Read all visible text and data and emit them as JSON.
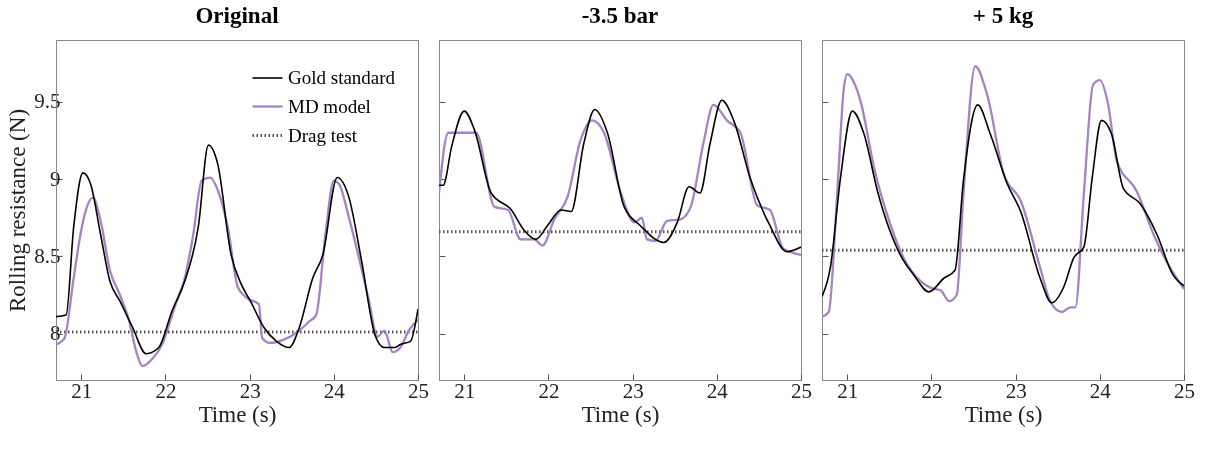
{
  "chart_data": [
    {
      "type": "line",
      "title": "Original",
      "xlabel": "Time (s)",
      "ylabel": "Rolling resistance (N)",
      "xlim": [
        20.7,
        25
      ],
      "ylim": [
        7.7,
        9.9
      ],
      "xticks": [
        21,
        22,
        23,
        24,
        25
      ],
      "yticks": [
        8,
        8.5,
        9,
        9.5
      ],
      "legend": "top right",
      "series": [
        {
          "name": "Gold standard",
          "color": "#000000",
          "line_style": "solid",
          "x": [
            20.7,
            20.82,
            20.91,
            21.02,
            21.11,
            21.23,
            21.34,
            21.46,
            21.61,
            21.77,
            21.92,
            22.08,
            22.23,
            22.39,
            22.51,
            22.62,
            22.78,
            22.9,
            23.01,
            23.17,
            23.32,
            23.47,
            23.59,
            23.75,
            23.87,
            24.04,
            24.18,
            24.33,
            24.49,
            24.6,
            24.72,
            24.79,
            24.91,
            25.0
          ],
          "values": [
            8.11,
            8.12,
            8.69,
            9.04,
            8.97,
            8.64,
            8.34,
            8.21,
            8.04,
            7.87,
            7.91,
            8.15,
            8.34,
            8.69,
            9.22,
            9.1,
            8.51,
            8.32,
            8.21,
            8.04,
            7.95,
            7.91,
            8.04,
            8.36,
            8.51,
            9.01,
            8.88,
            8.47,
            7.99,
            7.91,
            7.91,
            7.93,
            7.95,
            8.16
          ]
        },
        {
          "name": "MD model",
          "color": "#a583c4",
          "line_style": "solid",
          "x": [
            20.7,
            20.8,
            20.91,
            20.99,
            21.05,
            21.14,
            21.23,
            21.34,
            21.46,
            21.57,
            21.65,
            21.73,
            21.85,
            21.96,
            22.12,
            22.23,
            22.33,
            22.43,
            22.53,
            22.64,
            22.74,
            22.86,
            22.97,
            23.11,
            23.15,
            23.24,
            23.4,
            23.59,
            23.71,
            23.79,
            23.9,
            24.0,
            24.06,
            24.18,
            24.29,
            24.41,
            24.52,
            24.6,
            24.7,
            24.79,
            24.89,
            25.0
          ],
          "values": [
            7.93,
            7.97,
            8.36,
            8.64,
            8.79,
            8.88,
            8.73,
            8.41,
            8.25,
            8.08,
            7.89,
            7.79,
            7.84,
            7.93,
            8.19,
            8.36,
            8.64,
            8.99,
            9.01,
            8.9,
            8.69,
            8.3,
            8.23,
            8.19,
            7.97,
            7.94,
            7.96,
            8.02,
            8.08,
            8.12,
            8.64,
            8.99,
            8.97,
            8.75,
            8.51,
            8.23,
            7.98,
            8.02,
            7.88,
            7.91,
            8.02,
            8.09
          ]
        },
        {
          "name": "Drag test",
          "color": "#555555",
          "line_style": "dotted",
          "x": [
            20.7,
            25
          ],
          "values": [
            8.01,
            8.01
          ]
        }
      ]
    },
    {
      "type": "line",
      "title": "-3.5 bar",
      "xlabel": "Time (s)",
      "xlim": [
        20.7,
        25
      ],
      "ylim": [
        7.7,
        9.9
      ],
      "xticks": [
        21,
        22,
        23,
        24,
        25
      ],
      "yticks": [
        8,
        8.5,
        9,
        9.5
      ],
      "tick_labels": "x",
      "series": [
        {
          "color": "#000000",
          "line_style": "solid",
          "x": [
            20.7,
            20.75,
            20.85,
            21.0,
            21.12,
            21.32,
            21.56,
            21.71,
            21.85,
            21.99,
            22.15,
            22.27,
            22.42,
            22.55,
            22.7,
            22.9,
            23.09,
            23.37,
            23.53,
            23.67,
            23.8,
            23.92,
            24.06,
            24.2,
            24.4,
            24.63,
            24.83,
            25.0
          ],
          "values": [
            8.96,
            8.96,
            9.21,
            9.44,
            9.32,
            8.91,
            8.8,
            8.67,
            8.61,
            8.7,
            8.8,
            8.79,
            9.23,
            9.45,
            9.3,
            8.82,
            8.7,
            8.59,
            8.72,
            8.95,
            8.91,
            9.23,
            9.51,
            9.38,
            9.0,
            8.7,
            8.53,
            8.56
          ]
        },
        {
          "color": "#a583c4",
          "line_style": "solid",
          "x": [
            20.7,
            20.81,
            21.0,
            21.14,
            21.36,
            21.52,
            21.67,
            21.83,
            21.93,
            22.07,
            22.23,
            22.38,
            22.52,
            22.66,
            22.86,
            23.02,
            23.11,
            23.17,
            23.27,
            23.41,
            23.57,
            23.69,
            23.84,
            23.96,
            24.12,
            24.28,
            24.48,
            24.63,
            24.79,
            25.0
          ],
          "values": [
            8.91,
            9.3,
            9.3,
            9.3,
            8.82,
            8.8,
            8.61,
            8.61,
            8.57,
            8.74,
            8.89,
            9.25,
            9.38,
            9.3,
            8.91,
            8.72,
            8.75,
            8.61,
            8.6,
            8.73,
            8.74,
            8.82,
            9.23,
            9.48,
            9.38,
            9.3,
            8.83,
            8.8,
            8.55,
            8.51
          ]
        },
        {
          "color": "#555555",
          "line_style": "dotted",
          "x": [
            20.7,
            25
          ],
          "values": [
            8.66,
            8.66
          ]
        }
      ]
    },
    {
      "type": "line",
      "title": "+ 5 kg",
      "xlabel": "Time (s)",
      "xlim": [
        20.7,
        25
      ],
      "ylim": [
        7.7,
        9.9
      ],
      "xticks": [
        21,
        22,
        23,
        24,
        25
      ],
      "yticks": [
        8,
        8.5,
        9,
        9.5
      ],
      "tick_labels": "x",
      "series": [
        {
          "color": "#000000",
          "line_style": "solid",
          "x": [
            20.7,
            20.8,
            20.92,
            21.06,
            21.2,
            21.36,
            21.63,
            21.79,
            21.97,
            22.15,
            22.28,
            22.38,
            22.55,
            22.7,
            22.9,
            23.06,
            23.29,
            23.43,
            23.57,
            23.69,
            23.81,
            23.91,
            24.02,
            24.14,
            24.28,
            24.48,
            24.68,
            24.87,
            25.0
          ],
          "values": [
            8.24,
            8.43,
            9.01,
            9.44,
            9.29,
            8.92,
            8.51,
            8.38,
            8.27,
            8.36,
            8.41,
            8.99,
            9.48,
            9.29,
            8.97,
            8.79,
            8.36,
            8.2,
            8.3,
            8.49,
            8.56,
            9.01,
            9.38,
            9.29,
            8.94,
            8.84,
            8.64,
            8.38,
            8.31
          ]
        },
        {
          "color": "#a583c4",
          "line_style": "solid",
          "x": [
            20.7,
            20.78,
            20.88,
            20.96,
            21.0,
            21.1,
            21.16,
            21.32,
            21.51,
            21.67,
            21.87,
            22.03,
            22.11,
            22.21,
            22.3,
            22.38,
            22.52,
            22.66,
            22.86,
            23.06,
            23.29,
            23.41,
            23.55,
            23.65,
            23.71,
            23.81,
            23.92,
            24.0,
            24.1,
            24.2,
            24.44,
            24.64,
            24.83,
            25.0
          ],
          "values": [
            8.11,
            8.14,
            8.9,
            9.59,
            9.68,
            9.6,
            9.5,
            9.07,
            8.71,
            8.49,
            8.34,
            8.29,
            8.28,
            8.21,
            8.25,
            8.9,
            9.73,
            9.55,
            9.03,
            8.86,
            8.43,
            8.21,
            8.14,
            8.17,
            8.17,
            8.9,
            9.61,
            9.64,
            9.48,
            9.12,
            8.92,
            8.64,
            8.43,
            8.29
          ]
        },
        {
          "color": "#555555",
          "line_style": "dotted",
          "x": [
            20.7,
            25
          ],
          "values": [
            8.54,
            8.54
          ]
        }
      ]
    }
  ]
}
